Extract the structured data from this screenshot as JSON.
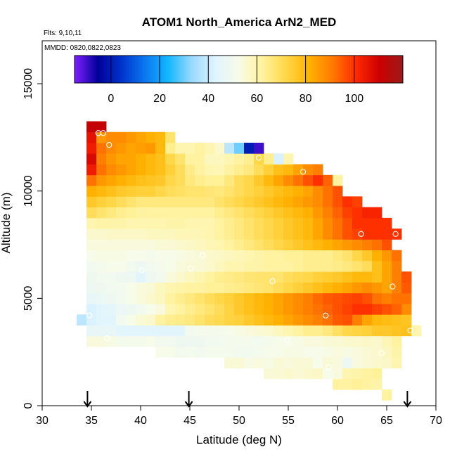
{
  "chart_data": {
    "type": "heatmap",
    "title": "ATOM1 North_America ArN2_MED",
    "flights_label": "Flts: 9,10,11",
    "dates_label": "MMDD: 0820,0822,0823",
    "xlabel": "Latitude (deg N)",
    "ylabel": "Altitude (m)",
    "xlim": [
      30,
      70
    ],
    "ylim": [
      0,
      17000
    ],
    "x_ticks": [
      30,
      35,
      40,
      45,
      50,
      55,
      60,
      65,
      70
    ],
    "y_ticks": [
      0,
      5000,
      10000,
      15000
    ],
    "colorbar": {
      "range": [
        -15,
        120
      ],
      "ticks": [
        0,
        20,
        40,
        60,
        80,
        100
      ],
      "colors": [
        "#7f1fff",
        "#000099",
        "#0033cc",
        "#0a78f0",
        "#14b7ff",
        "#99d9ff",
        "#e0f4ff",
        "#f8fbe8",
        "#fff3a0",
        "#ffd84a",
        "#ffb300",
        "#ff7a00",
        "#ff2a00",
        "#cc0000",
        "#9c1a1a"
      ]
    },
    "cell_size": {
      "lat": 1.0,
      "alt": 500
    },
    "rows": [
      {
        "alt": 500,
        "start": 64.5,
        "values": [
          62
        ]
      },
      {
        "alt": 1000,
        "start": 59.5,
        "values": [
          62,
          62,
          63,
          62,
          61
        ]
      },
      {
        "alt": 1500,
        "start": 52.5,
        "values": [
          55,
          55,
          56,
          55,
          56,
          57,
          52,
          54,
          60,
          61,
          62,
          63
        ]
      },
      {
        "alt": 2000,
        "start": 48.5,
        "values": [
          55,
          55,
          53,
          54,
          53,
          55,
          54,
          55,
          55,
          52,
          55,
          54,
          48,
          54,
          55,
          56,
          57,
          60
        ]
      },
      {
        "alt": 2500,
        "start": 41.5,
        "values": [
          52,
          52,
          50,
          51,
          50,
          51,
          51,
          51,
          50,
          50,
          51,
          52,
          52,
          53,
          53,
          52,
          52,
          53,
          54,
          53,
          54,
          55,
          56,
          58,
          61
        ]
      },
      {
        "alt": 3000,
        "start": 34.5,
        "values": [
          54,
          54,
          53,
          51,
          51,
          51,
          52,
          50,
          50,
          49,
          49,
          49,
          50,
          50,
          51,
          51,
          51,
          50,
          51,
          52,
          52,
          53,
          54,
          54,
          55,
          55,
          56,
          56,
          57,
          56,
          59,
          62
        ]
      },
      {
        "alt": 3500,
        "start": 34.5,
        "values": [
          46,
          46,
          46,
          44,
          44,
          44,
          44,
          44,
          44,
          44,
          50,
          51,
          51,
          51,
          52,
          53,
          54,
          55,
          56,
          58,
          60,
          62,
          64,
          64,
          66,
          69,
          72,
          73,
          74,
          76,
          76,
          77,
          78,
          60
        ]
      },
      {
        "alt": 4000,
        "start": 33.5,
        "values": [
          38,
          42,
          44,
          44,
          50,
          52,
          55,
          56,
          62,
          64,
          65,
          66,
          68,
          70,
          71,
          73,
          74,
          76,
          78,
          80,
          82,
          84,
          86,
          88,
          90,
          92,
          95,
          96,
          90,
          84,
          80,
          79,
          78,
          77
        ]
      },
      {
        "alt": 4500,
        "start": 34.5,
        "values": [
          42,
          44,
          45,
          47,
          48,
          50,
          52,
          54,
          60,
          62,
          64,
          66,
          68,
          70,
          73,
          76,
          78,
          80,
          82,
          84,
          86,
          88,
          90,
          92,
          94,
          96,
          98,
          100,
          100,
          98,
          96,
          94,
          88
        ]
      },
      {
        "alt": 5000,
        "start": 34.5,
        "values": [
          46,
          47,
          48,
          50,
          52,
          54,
          56,
          58,
          62,
          64,
          66,
          68,
          70,
          72,
          74,
          76,
          78,
          80,
          82,
          84,
          86,
          88,
          90,
          93,
          95,
          96,
          97,
          98,
          96,
          92,
          90,
          92,
          92
        ]
      },
      {
        "alt": 5500,
        "start": 34.5,
        "values": [
          48,
          49,
          50,
          50,
          52,
          54,
          55,
          58,
          60,
          61,
          62,
          62,
          63,
          63,
          64,
          65,
          66,
          67,
          68,
          70,
          72,
          74,
          76,
          78,
          80,
          82,
          84,
          86,
          88,
          86,
          84,
          90,
          95
        ]
      },
      {
        "alt": 6000,
        "start": 34.5,
        "values": [
          49,
          50,
          50,
          49,
          48,
          44,
          48,
          50,
          54,
          56,
          58,
          60,
          62,
          64,
          65,
          66,
          67,
          68,
          68,
          68,
          70,
          71,
          72,
          74,
          75,
          76,
          78,
          80,
          80,
          78,
          84,
          90,
          96
        ]
      },
      {
        "alt": 6500,
        "start": 34.5,
        "values": [
          50,
          51,
          52,
          52,
          50,
          48,
          50,
          51,
          52,
          54,
          55,
          55,
          56,
          58,
          60,
          60,
          61,
          61,
          62,
          62,
          62,
          63,
          64,
          64,
          64,
          65,
          66,
          68,
          70,
          78,
          84,
          90
        ]
      },
      {
        "alt": 7000,
        "start": 34.5,
        "values": [
          52,
          53,
          53,
          53,
          52,
          52,
          51,
          52,
          52,
          53,
          54,
          55,
          56,
          57,
          58,
          59,
          60,
          61,
          62,
          62,
          63,
          63,
          64,
          64,
          64,
          66,
          68,
          72,
          76,
          82,
          86,
          92
        ]
      },
      {
        "alt": 7500,
        "start": 34.5,
        "values": [
          54,
          54,
          54,
          54,
          54,
          54,
          54,
          55,
          55,
          56,
          57,
          58,
          59,
          60,
          62,
          64,
          66,
          68,
          70,
          72,
          74,
          76,
          78,
          80,
          82,
          84,
          86,
          88,
          90,
          92,
          96
        ]
      },
      {
        "alt": 8000,
        "start": 34.5,
        "values": [
          56,
          56,
          57,
          57,
          57,
          57,
          58,
          58,
          58,
          59,
          59,
          59,
          60,
          62,
          64,
          66,
          68,
          70,
          72,
          74,
          76,
          78,
          80,
          84,
          88,
          92,
          96,
          98,
          100,
          100,
          100,
          100
        ]
      },
      {
        "alt": 8500,
        "start": 34.5,
        "values": [
          60,
          61,
          61,
          61,
          60,
          60,
          60,
          60,
          61,
          61,
          60,
          60,
          60,
          62,
          64,
          66,
          68,
          70,
          72,
          74,
          76,
          78,
          80,
          84,
          88,
          92,
          96,
          100,
          100,
          100,
          100
        ]
      },
      {
        "alt": 9000,
        "start": 34.5,
        "values": [
          70,
          68,
          66,
          64,
          63,
          62,
          62,
          62,
          62,
          62,
          62,
          62,
          62,
          64,
          66,
          68,
          70,
          72,
          74,
          76,
          78,
          80,
          82,
          86,
          90,
          94,
          98,
          100,
          102,
          102
        ]
      },
      {
        "alt": 9500,
        "start": 34.5,
        "values": [
          76,
          74,
          72,
          70,
          68,
          66,
          66,
          66,
          66,
          66,
          66,
          66,
          66,
          68,
          70,
          72,
          74,
          76,
          78,
          80,
          82,
          84,
          86,
          88,
          92,
          96,
          100,
          98
        ]
      },
      {
        "alt": 10000,
        "start": 34.5,
        "values": [
          82,
          80,
          78,
          76,
          75,
          74,
          74,
          72,
          70,
          69,
          68,
          68,
          67,
          66,
          68,
          70,
          72,
          74,
          76,
          78,
          80,
          82,
          84,
          88,
          92,
          96
        ]
      },
      {
        "alt": 10500,
        "start": 34.5,
        "values": [
          92,
          86,
          84,
          82,
          80,
          78,
          77,
          76,
          72,
          70,
          66,
          64,
          63,
          63,
          66,
          70,
          72,
          76,
          80,
          84,
          88,
          92,
          96,
          100,
          94,
          62
        ]
      },
      {
        "alt": 11000,
        "start": 34.5,
        "values": [
          104,
          92,
          88,
          86,
          84,
          82,
          80,
          78,
          74,
          70,
          65,
          62,
          60,
          59,
          62,
          64,
          66,
          70,
          74,
          78,
          80,
          84,
          88,
          90
        ]
      },
      {
        "alt": 11500,
        "start": 34.5,
        "values": [
          108,
          90,
          86,
          84,
          84,
          82,
          80,
          78,
          72,
          68,
          62,
          62,
          58,
          58,
          60,
          62,
          64,
          72,
          64,
          42,
          60
        ]
      },
      {
        "alt": 12000,
        "start": 34.5,
        "values": [
          104,
          92,
          88,
          86,
          84,
          85,
          86,
          80,
          64,
          60,
          60,
          62,
          60,
          56,
          38,
          30,
          0,
          -10
        ]
      },
      {
        "alt": 12500,
        "start": 34.5,
        "values": [
          106,
          86,
          88,
          88,
          86,
          84,
          82,
          80,
          68
        ]
      },
      {
        "alt": 13000,
        "start": 34.5,
        "values": [
          112,
          112
        ]
      }
    ],
    "sample_points": [
      {
        "lat": 35.7,
        "alt": 12700
      },
      {
        "lat": 36.2,
        "alt": 12700
      },
      {
        "lat": 36.8,
        "alt": 12150
      },
      {
        "lat": 52.0,
        "alt": 11550
      },
      {
        "lat": 56.5,
        "alt": 10900
      },
      {
        "lat": 62.4,
        "alt": 8000
      },
      {
        "lat": 65.9,
        "alt": 8000
      },
      {
        "lat": 46.3,
        "alt": 7000
      },
      {
        "lat": 40.1,
        "alt": 6300
      },
      {
        "lat": 45.1,
        "alt": 6400
      },
      {
        "lat": 53.4,
        "alt": 5800
      },
      {
        "lat": 65.6,
        "alt": 5550
      },
      {
        "lat": 34.8,
        "alt": 4200
      },
      {
        "lat": 58.8,
        "alt": 4200
      },
      {
        "lat": 36.6,
        "alt": 3150
      },
      {
        "lat": 54.9,
        "alt": 3050
      },
      {
        "lat": 67.4,
        "alt": 3500
      },
      {
        "lat": 64.5,
        "alt": 2450
      },
      {
        "lat": 59.1,
        "alt": 1800
      }
    ],
    "flight_arrow_lats": [
      34.6,
      44.9,
      67.1
    ]
  }
}
